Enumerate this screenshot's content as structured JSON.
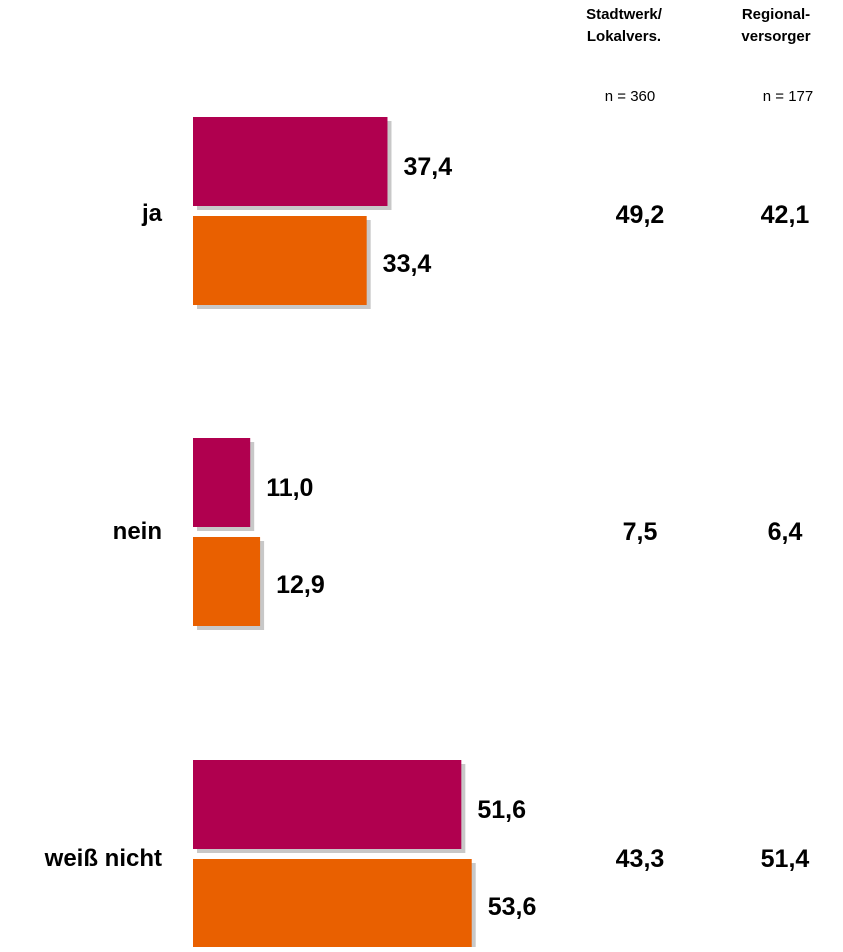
{
  "colors": {
    "series1": "#B0004F",
    "series2": "#E96000"
  },
  "chart_data": {
    "type": "bar",
    "orientation": "horizontal",
    "categories": [
      "ja",
      "nein",
      "weiß nicht"
    ],
    "series": [
      {
        "values": [
          37.4,
          11.0,
          51.6
        ],
        "labels": [
          "37,4",
          "11,0",
          "51,6"
        ]
      },
      {
        "values": [
          33.4,
          12.9,
          53.6
        ],
        "labels": [
          "33,4",
          "12,9",
          "53,6"
        ]
      }
    ],
    "xlim": [
      0,
      60
    ],
    "grid": false,
    "legend": "none"
  },
  "side_columns": [
    {
      "header": [
        "Stadtwerk/",
        "Lokalvers."
      ],
      "n": "n = 360",
      "values": [
        "49,2",
        "7,5",
        "43,3"
      ]
    },
    {
      "header": [
        "Regional-",
        "versorger"
      ],
      "n": "n = 177",
      "values": [
        "42,1",
        "6,4",
        "51,4"
      ]
    }
  ]
}
